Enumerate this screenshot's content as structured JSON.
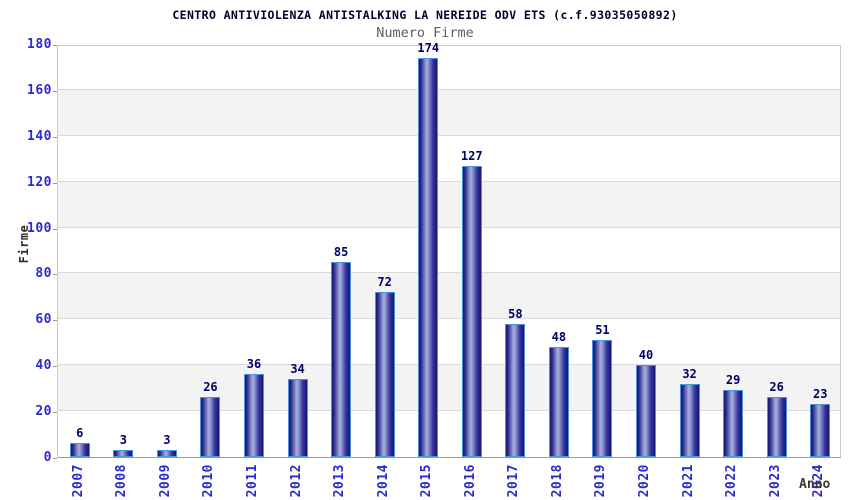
{
  "chart_data": {
    "type": "bar",
    "title": "CENTRO ANTIVIOLENZA ANTISTALKING LA NEREIDE ODV ETS (c.f.93035050892)",
    "subtitle": "Numero Firme",
    "xlabel": "Anno",
    "ylabel": "Firme",
    "categories": [
      "2007",
      "2008",
      "2009",
      "2010",
      "2011",
      "2012",
      "2013",
      "2014",
      "2015",
      "2016",
      "2017",
      "2018",
      "2019",
      "2020",
      "2021",
      "2022",
      "2023",
      "2024"
    ],
    "values": [
      6,
      3,
      3,
      26,
      36,
      34,
      85,
      72,
      174,
      127,
      58,
      48,
      51,
      40,
      32,
      29,
      26,
      23
    ],
    "ylim": [
      0,
      180
    ],
    "ytick_step": 20,
    "legend": "none",
    "grid": "horizontal-bands-alternating",
    "colors": {
      "bar_fill_dark": "#15157A",
      "bar_fill_light": "#AAB1DD",
      "bar_border": "#4B93DD",
      "axis_tick_label": "#2A2ACE",
      "value_label": "#000066",
      "title_text": "#00002E",
      "subtitle_text": "#5E5E5E",
      "band_fill": "#F3F3F3",
      "gridline": "#DCDCDC",
      "plot_border": "#C9C9C9"
    }
  }
}
